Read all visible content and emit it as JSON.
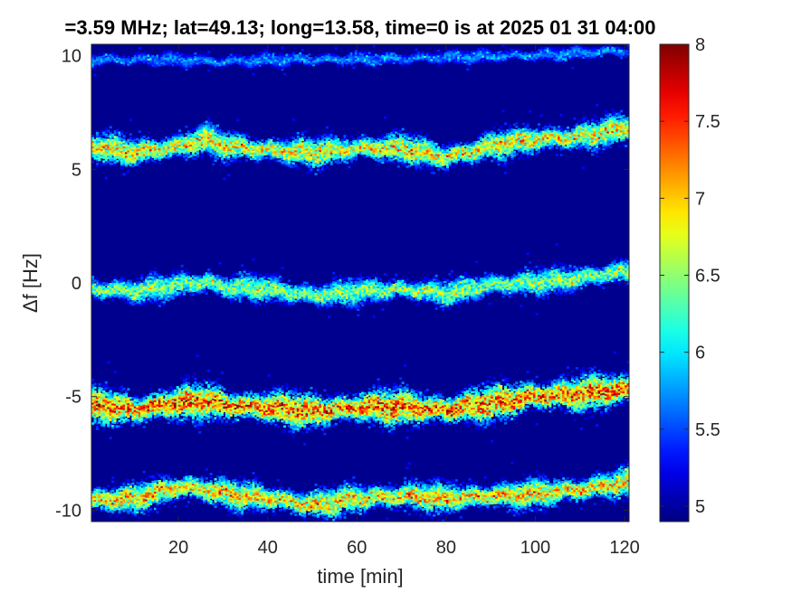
{
  "chart_data": {
    "type": "heatmap",
    "title": "=3.59 MHz;  lat=49.13; long=13.58, time=0 is at 2025 01 31 04:00",
    "xlabel": "time [min]",
    "ylabel": "Δf [Hz]",
    "xlim": [
      0.5,
      121
    ],
    "ylim": [
      -10.5,
      10.5
    ],
    "xticks": [
      20,
      40,
      60,
      80,
      100,
      120
    ],
    "xtick_labels": [
      "20",
      "40",
      "60",
      "80",
      "100",
      "120"
    ],
    "yticks": [
      -10,
      -5,
      0,
      5,
      10
    ],
    "ytick_labels": [
      "-10",
      "-5",
      "0",
      "5",
      "10"
    ],
    "colorbar": {
      "colormap": "jet",
      "range": [
        4.9,
        8
      ],
      "ticks": [
        5,
        5.5,
        6,
        6.5,
        7,
        7.5,
        8
      ],
      "tick_labels": [
        "5",
        "5.5",
        "6",
        "6.5",
        "7",
        "7.5",
        "8"
      ]
    },
    "background_color": "#00008f",
    "series": [
      {
        "time": [
          0,
          10,
          20,
          26,
          30,
          40,
          50,
          60,
          70,
          80,
          90,
          100,
          110,
          120
        ],
        "delta_f": [
          -9.6,
          -9.5,
          -9.0,
          -9.1,
          -9.3,
          -9.5,
          -9.8,
          -9.5,
          -9.4,
          -9.5,
          -9.4,
          -9.3,
          -9.1,
          -8.8
        ],
        "peak": 7.2,
        "width": 0.5
      },
      {
        "time": [
          0,
          10,
          20,
          26,
          30,
          40,
          50,
          60,
          70,
          80,
          90,
          100,
          110,
          120
        ],
        "delta_f": [
          -5.4,
          -5.6,
          -5.3,
          -5.2,
          -5.4,
          -5.5,
          -5.7,
          -5.5,
          -5.5,
          -5.6,
          -5.3,
          -5.0,
          -4.9,
          -4.7
        ],
        "peak": 7.6,
        "width": 0.6
      },
      {
        "time": [
          0,
          10,
          20,
          26,
          30,
          40,
          50,
          60,
          70,
          80,
          90,
          100,
          110,
          120
        ],
        "delta_f": [
          -0.3,
          -0.4,
          -0.1,
          0.0,
          -0.2,
          -0.3,
          -0.6,
          -0.4,
          -0.3,
          -0.5,
          -0.1,
          0.0,
          0.2,
          0.5
        ],
        "peak": 6.7,
        "width": 0.45
      },
      {
        "time": [
          0,
          10,
          20,
          26,
          30,
          40,
          50,
          60,
          70,
          80,
          90,
          100,
          110,
          120
        ],
        "delta_f": [
          6.0,
          5.7,
          6.0,
          6.3,
          6.0,
          5.8,
          5.7,
          5.9,
          5.9,
          5.5,
          6.0,
          6.3,
          6.4,
          6.8
        ],
        "peak": 7.1,
        "width": 0.5
      },
      {
        "time": [
          0,
          20,
          30,
          40,
          60,
          80,
          100,
          120
        ],
        "delta_f": [
          9.8,
          9.8,
          9.7,
          9.8,
          9.8,
          9.9,
          10.0,
          10.2
        ],
        "peak": 5.8,
        "width": 0.25
      }
    ]
  }
}
